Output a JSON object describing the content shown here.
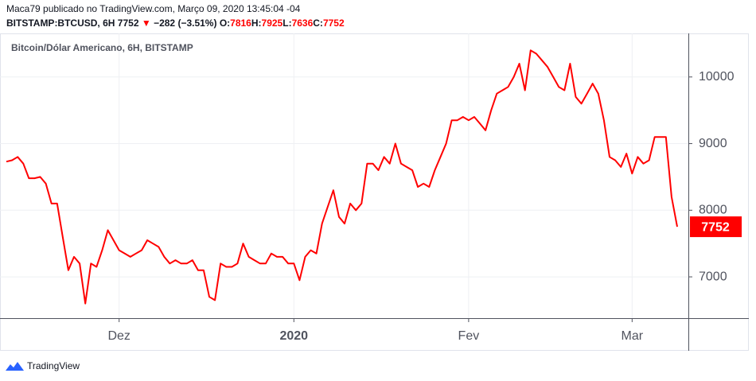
{
  "header": {
    "author_line": "Maca79 publicado no TradingView.com, Março 09, 2020 13:45:04 -04",
    "symbol": "BITSTAMP:BTCUSD, 6H",
    "last": "7752",
    "arrow": "▼",
    "change": "−282 (−3.51%)",
    "ohlc": [
      {
        "label": "O:",
        "value": "7816"
      },
      {
        "label": "H:",
        "value": "7925"
      },
      {
        "label": "L:",
        "value": "7636"
      },
      {
        "label": "C:",
        "value": "7752"
      }
    ]
  },
  "chart_data": {
    "type": "line",
    "title": "Bitcoin/Dólar Americano, 6H, BITSTAMP",
    "color": "#ff0000",
    "grid": true,
    "categories": [
      null,
      null,
      null,
      null,
      null,
      null,
      null,
      null,
      null,
      null,
      null,
      null,
      null,
      null,
      null,
      null,
      null,
      null,
      null,
      null,
      "Dez",
      null,
      null,
      null,
      null,
      null,
      null,
      null,
      null,
      null,
      null,
      null,
      null,
      null,
      null,
      null,
      null,
      null,
      null,
      null,
      null,
      null,
      null,
      null,
      null,
      null,
      null,
      null,
      null,
      null,
      null,
      "2020",
      null,
      null,
      null,
      null,
      null,
      null,
      null,
      null,
      null,
      null,
      null,
      null,
      null,
      null,
      null,
      null,
      null,
      null,
      null,
      null,
      null,
      null,
      null,
      null,
      null,
      null,
      null,
      null,
      null,
      null,
      "Fev",
      null,
      null,
      null,
      null,
      null,
      null,
      null,
      null,
      null,
      null,
      null,
      null,
      null,
      null,
      null,
      null,
      null,
      null,
      null,
      null,
      null,
      null,
      null,
      null,
      null,
      null,
      null,
      null,
      "Mar",
      null,
      null,
      null,
      null,
      null,
      null,
      null,
      null
    ],
    "values": [
      8730,
      8750,
      8800,
      8700,
      8480,
      8480,
      8500,
      8400,
      8100,
      8100,
      7600,
      7100,
      7300,
      7200,
      6600,
      7200,
      7150,
      7400,
      7700,
      7550,
      7400,
      7350,
      7300,
      7350,
      7400,
      7550,
      7500,
      7450,
      7300,
      7200,
      7250,
      7200,
      7200,
      7250,
      7100,
      7100,
      6700,
      6650,
      7200,
      7150,
      7150,
      7200,
      7500,
      7300,
      7250,
      7200,
      7200,
      7350,
      7300,
      7300,
      7200,
      7200,
      6950,
      7300,
      7400,
      7350,
      7800,
      8050,
      8300,
      7900,
      7800,
      8100,
      8000,
      8100,
      8700,
      8700,
      8600,
      8800,
      8700,
      9000,
      8700,
      8650,
      8600,
      8350,
      8400,
      8350,
      8600,
      8800,
      9000,
      9350,
      9350,
      9400,
      9350,
      9400,
      9300,
      9200,
      9500,
      9750,
      9800,
      9850,
      10000,
      10200,
      9800,
      10400,
      10350,
      10250,
      10150,
      10000,
      9850,
      9800,
      10200,
      9700,
      9600,
      9750,
      9900,
      9750,
      9350,
      8800,
      8750,
      8650,
      8850,
      8550,
      8800,
      8700,
      8750,
      9100,
      9100,
      9100,
      8200,
      7752
    ],
    "ylim": [
      6380,
      10630
    ],
    "yticks": [
      7000,
      8000,
      9000,
      10000
    ]
  }
}
